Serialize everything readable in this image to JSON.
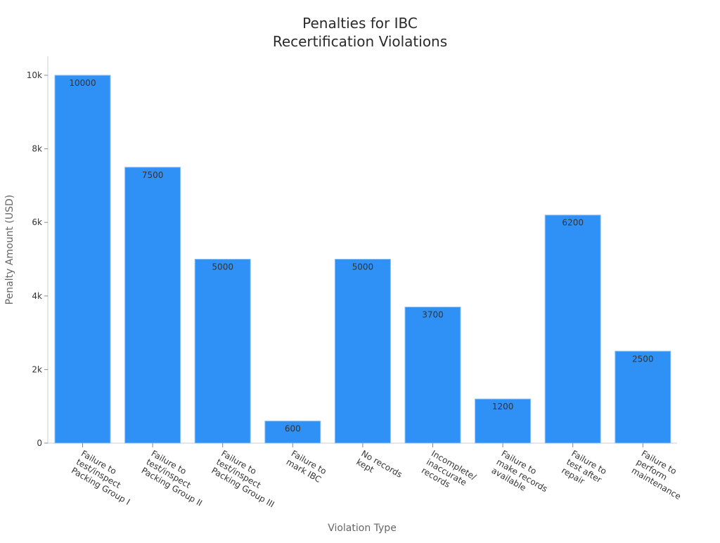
{
  "chart_data": {
    "type": "bar",
    "title": [
      "Penalties for IBC",
      "Recertification Violations"
    ],
    "xlabel": "Violation Type",
    "ylabel": "Penalty Amount (USD)",
    "ylim": [
      0,
      10500
    ],
    "yticks": [
      0,
      2000,
      4000,
      6000,
      8000,
      10000
    ],
    "ytick_labels": [
      "0",
      "2k",
      "4k",
      "6k",
      "8k",
      "10k"
    ],
    "categories": [
      [
        "Failure to",
        "test/inspect",
        "Packing Group I"
      ],
      [
        "Failure to",
        "test/inspect",
        "Packing Group II"
      ],
      [
        "Failure to",
        "test/inspect",
        "Packing Group III"
      ],
      [
        "Failure to",
        "mark IBC"
      ],
      [
        "No records",
        "kept"
      ],
      [
        "Incomplete/",
        "inaccurate",
        "records"
      ],
      [
        "Failure to",
        "make records",
        "available"
      ],
      [
        "Failure to",
        "test after",
        "repair"
      ],
      [
        "Failure to",
        "perform",
        "maintenance"
      ]
    ],
    "values": [
      10000,
      7500,
      5000,
      600,
      5000,
      3700,
      1200,
      6200,
      2500
    ],
    "data_labels": [
      "10000",
      "7500",
      "5000",
      "600",
      "5000",
      "3700",
      "1200",
      "6200",
      "2500"
    ],
    "grid": false,
    "bar_color": "#2f91f5"
  }
}
